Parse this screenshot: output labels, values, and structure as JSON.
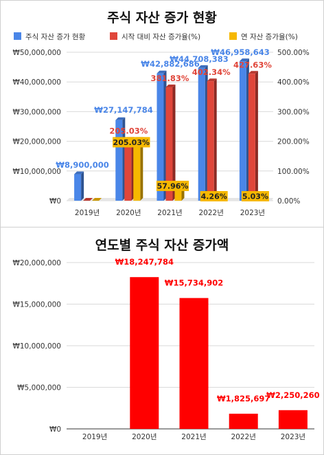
{
  "chart_data": [
    {
      "type": "bar",
      "title": "주식 자산 증가 현황",
      "categories": [
        "2019년",
        "2020년",
        "2021년",
        "2022년",
        "2023년"
      ],
      "legend_position": "top",
      "series": [
        {
          "name": "주식 자산 증가 현황",
          "axis": "left",
          "color": "#4a86e8",
          "values": [
            8900000,
            27147784,
            42882686,
            44708383,
            46958643
          ],
          "labels": [
            "₩8,900,000",
            "₩27,147,784",
            "₩42,882,686",
            "₩44,708,383",
            "₩46,958,643"
          ]
        },
        {
          "name": "시작 대비 자산 증가율(%)",
          "axis": "right",
          "color": "#e0463a",
          "values": [
            0,
            205.03,
            381.83,
            402.34,
            427.63
          ],
          "labels": [
            "",
            "205.03%",
            "381.83%",
            "402.34%",
            "427.63%"
          ]
        },
        {
          "name": "연 자산 증가율(%)",
          "axis": "right",
          "color": "#f6b800",
          "values": [
            0,
            205.03,
            57.96,
            4.26,
            5.03
          ],
          "labels": [
            "",
            "205.03%",
            "57.96%",
            "4.26%",
            "5.03%"
          ]
        }
      ],
      "y_left": {
        "range": [
          0,
          50000000
        ],
        "ticks": [
          0,
          10000000,
          20000000,
          30000000,
          40000000,
          50000000
        ],
        "tick_labels": [
          "₩0",
          "₩10,000,000",
          "₩20,000,000",
          "₩30,000,000",
          "₩40,000,000",
          "₩50,000,000"
        ]
      },
      "y_right": {
        "range": [
          0,
          500
        ],
        "ticks": [
          0,
          100,
          200,
          300,
          400,
          500
        ],
        "tick_labels": [
          "0.00%",
          "100.00%",
          "200.00%",
          "300.00%",
          "400.00%",
          "500.00%"
        ]
      },
      "grid": true
    },
    {
      "type": "bar",
      "title": "연도별 주식 자산 증가액",
      "categories": [
        "2019년",
        "2020년",
        "2021년",
        "2022년",
        "2023년"
      ],
      "series": [
        {
          "color": "#ff0000",
          "values": [
            0,
            18247784,
            15734902,
            1825697,
            2250260
          ],
          "labels": [
            "",
            "₩18,247,784",
            "₩15,734,902",
            "₩1,825,697",
            "₩2,250,260"
          ]
        }
      ],
      "y": {
        "range": [
          0,
          20000000
        ],
        "ticks": [
          0,
          5000000,
          10000000,
          15000000,
          20000000
        ],
        "tick_labels": [
          "₩0",
          "₩5,000,000",
          "₩10,000,000",
          "₩15,000,000",
          "₩20,000,000"
        ]
      },
      "grid": true
    }
  ]
}
